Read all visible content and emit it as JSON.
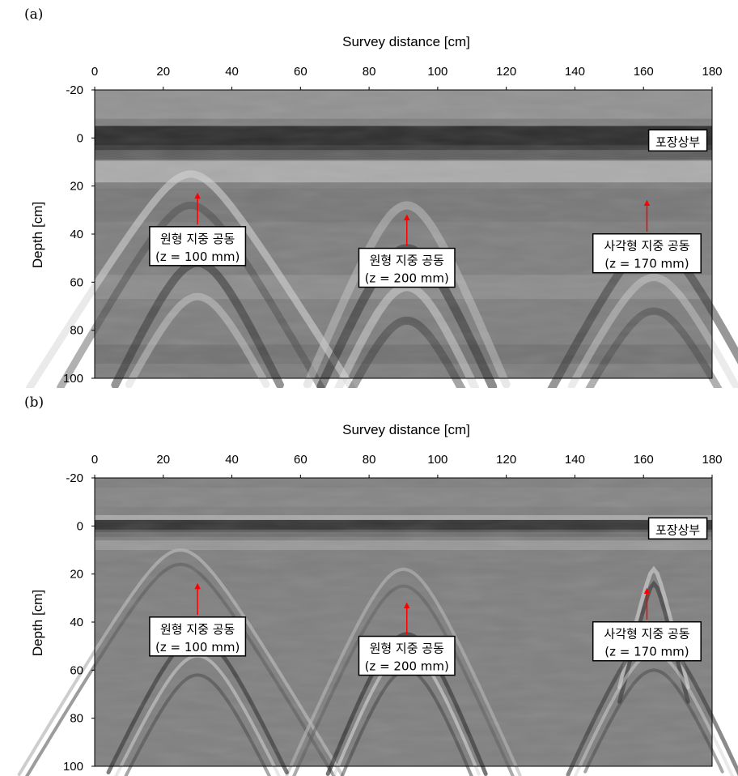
{
  "chart_data": [
    {
      "type": "heatmap",
      "panel_label": "(a)",
      "xlabel": "Survey distance [cm]",
      "ylabel": "Depth [cm]",
      "xlim": [
        0,
        180
      ],
      "ylim": [
        -20,
        100
      ],
      "y_inverted": true,
      "x_axis_position": "top",
      "x_ticks": [
        0,
        20,
        40,
        60,
        80,
        100,
        120,
        140,
        160,
        180
      ],
      "y_ticks": [
        -20,
        0,
        20,
        40,
        60,
        80,
        100
      ],
      "colormap": "grayscale",
      "annotations": [
        {
          "lines": [
            "포장상부"
          ],
          "x": 170,
          "y": 1
        },
        {
          "lines": [
            "원형 지중 공동",
            "(z = 100 mm)"
          ],
          "x": 30,
          "y": 45,
          "arrow_from": [
            30,
            36
          ],
          "arrow_to": [
            30,
            24
          ]
        },
        {
          "lines": [
            "원형 지중 공동",
            "(z = 200 mm)"
          ],
          "x": 91,
          "y": 54,
          "arrow_from": [
            91,
            45
          ],
          "arrow_to": [
            91,
            33
          ]
        },
        {
          "lines": [
            "사각형 지중 공동",
            "(z = 170 mm)"
          ],
          "x": 161,
          "y": 48,
          "arrow_from": [
            161,
            39
          ],
          "arrow_to": [
            161,
            27
          ]
        }
      ]
    },
    {
      "type": "heatmap",
      "panel_label": "(b)",
      "xlabel": "Survey distance [cm]",
      "ylabel": "Depth [cm]",
      "xlim": [
        0,
        180
      ],
      "ylim": [
        -20,
        100
      ],
      "y_inverted": true,
      "x_axis_position": "top",
      "x_ticks": [
        0,
        20,
        40,
        60,
        80,
        100,
        120,
        140,
        160,
        180
      ],
      "y_ticks": [
        -20,
        0,
        20,
        40,
        60,
        80,
        100
      ],
      "colormap": "grayscale",
      "annotations": [
        {
          "lines": [
            "포장상부"
          ],
          "x": 170,
          "y": 1
        },
        {
          "lines": [
            "원형 지중 공동",
            "(z = 100 mm)"
          ],
          "x": 30,
          "y": 46,
          "arrow_from": [
            30,
            37
          ],
          "arrow_to": [
            30,
            25
          ]
        },
        {
          "lines": [
            "원형 지중 공동",
            "(z = 200 mm)"
          ],
          "x": 91,
          "y": 54,
          "arrow_from": [
            91,
            45
          ],
          "arrow_to": [
            91,
            33
          ]
        },
        {
          "lines": [
            "사각형 지중 공동",
            "(z = 170 mm)"
          ],
          "x": 161,
          "y": 48,
          "arrow_from": [
            161,
            39
          ],
          "arrow_to": [
            161,
            27
          ]
        }
      ]
    }
  ]
}
